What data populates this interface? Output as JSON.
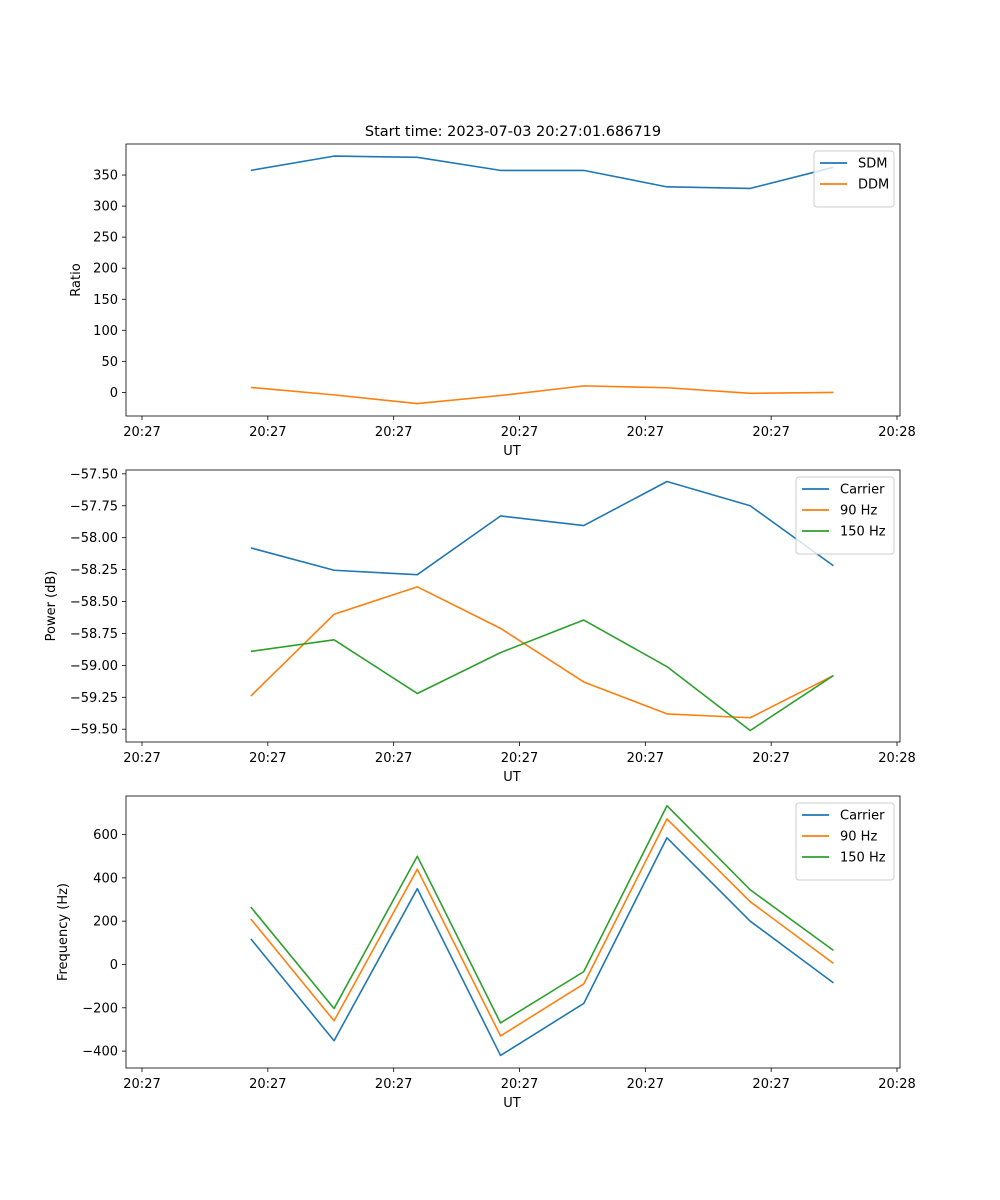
{
  "figure": {
    "title": "Start time: 2023-07-03 20:27:01.686719"
  },
  "chart_data": [
    {
      "type": "line",
      "title": "Start time: 2023-07-03 20:27:01.686719",
      "xlabel": "UT",
      "ylabel": "Ratio",
      "x_tick_labels": [
        "20:27",
        "20:27",
        "20:27",
        "20:27",
        "20:27",
        "20:27",
        "20:28"
      ],
      "x_points": [
        1,
        2,
        3,
        4,
        5,
        6,
        7,
        8
      ],
      "xlim": [
        -0.5,
        8.8
      ],
      "ylim": [
        -38,
        400
      ],
      "y_ticks": [
        0,
        50,
        100,
        150,
        200,
        250,
        300,
        350
      ],
      "y_tick_labels": [
        "0",
        "50",
        "100",
        "150",
        "200",
        "250",
        "300",
        "350"
      ],
      "legend": "top-right",
      "series": [
        {
          "name": "SDM",
          "color": "#1f77b4",
          "values": [
            357.5,
            380.5,
            378.5,
            357.5,
            357.5,
            331,
            328.5,
            362.5
          ]
        },
        {
          "name": "DDM",
          "color": "#ff7f0e",
          "values": [
            8,
            -4,
            -18,
            -5,
            10.5,
            7.5,
            -1.5,
            0
          ]
        }
      ]
    },
    {
      "type": "line",
      "xlabel": "UT",
      "ylabel": "Power (dB)",
      "x_tick_labels": [
        "20:27",
        "20:27",
        "20:27",
        "20:27",
        "20:27",
        "20:27",
        "20:28"
      ],
      "x_points": [
        1,
        2,
        3,
        4,
        5,
        6,
        7,
        8
      ],
      "xlim": [
        -0.5,
        8.8
      ],
      "ylim": [
        -59.6,
        -57.47
      ],
      "y_ticks": [
        -59.5,
        -59.25,
        -59.0,
        -58.75,
        -58.5,
        -58.25,
        -58.0,
        -57.75,
        -57.5
      ],
      "y_tick_labels": [
        "−59.50",
        "−59.25",
        "−59.00",
        "−58.75",
        "−58.50",
        "−58.25",
        "−58.00",
        "−57.75",
        "−57.50"
      ],
      "legend": "top-right",
      "series": [
        {
          "name": "Carrier",
          "color": "#1f77b4",
          "values": [
            -58.08,
            -58.255,
            -58.29,
            -57.83,
            -57.905,
            -57.56,
            -57.75,
            -58.22
          ]
        },
        {
          "name": "90 Hz",
          "color": "#ff7f0e",
          "values": [
            -59.24,
            -58.6,
            -58.385,
            -58.71,
            -59.13,
            -59.38,
            -59.41,
            -59.08
          ]
        },
        {
          "name": "150 Hz",
          "color": "#2ca02c",
          "values": [
            -58.89,
            -58.8,
            -59.22,
            -58.9,
            -58.645,
            -59.01,
            -59.51,
            -59.08
          ]
        }
      ]
    },
    {
      "type": "line",
      "xlabel": "UT",
      "ylabel": "Frequency (Hz)",
      "x_tick_labels": [
        "20:27",
        "20:27",
        "20:27",
        "20:27",
        "20:27",
        "20:27",
        "20:28"
      ],
      "x_points": [
        1,
        2,
        3,
        4,
        5,
        6,
        7,
        8
      ],
      "xlim": [
        -0.5,
        8.8
      ],
      "ylim": [
        -478,
        778
      ],
      "y_ticks": [
        -400,
        -200,
        0,
        200,
        400,
        600
      ],
      "y_tick_labels": [
        "−400",
        "−200",
        "0",
        "200",
        "400",
        "600"
      ],
      "legend": "top-right",
      "series": [
        {
          "name": "Carrier",
          "color": "#1f77b4",
          "values": [
            118,
            -352,
            350,
            -420,
            -180,
            585,
            200,
            -85
          ]
        },
        {
          "name": "90 Hz",
          "color": "#ff7f0e",
          "values": [
            210,
            -260,
            440,
            -330,
            -90,
            672,
            290,
            5
          ]
        },
        {
          "name": "150 Hz",
          "color": "#2ca02c",
          "values": [
            265,
            -203,
            500,
            -270,
            -33,
            733,
            345,
            65
          ]
        }
      ]
    }
  ]
}
